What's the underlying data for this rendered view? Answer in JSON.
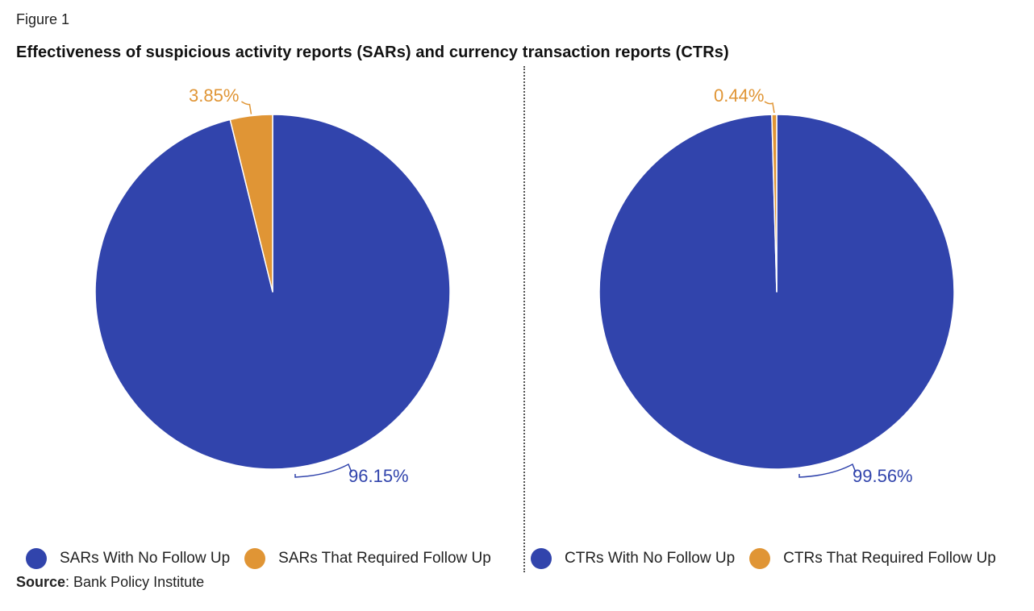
{
  "figure_label": "Figure 1",
  "title": "Effectiveness of suspicious activity reports (SARs) and currency transaction reports (CTRs)",
  "source": {
    "label": "Source",
    "text": ": Bank Policy Institute"
  },
  "colors": {
    "primary": "#3144AC",
    "accent": "#E09535",
    "divider": "#555555"
  },
  "chart_data": [
    {
      "type": "pie",
      "name": "SARs",
      "slices": [
        {
          "label": "SARs With No Follow Up",
          "value": 96.15,
          "display": "96.15%",
          "color": "#3144AC"
        },
        {
          "label": "SARs That Required Follow Up",
          "value": 3.85,
          "display": "3.85%",
          "color": "#E09535"
        }
      ]
    },
    {
      "type": "pie",
      "name": "CTRs",
      "slices": [
        {
          "label": "CTRs With No Follow Up",
          "value": 99.56,
          "display": "99.56%",
          "color": "#3144AC"
        },
        {
          "label": "CTRs That Required Follow Up",
          "value": 0.44,
          "display": "0.44%",
          "color": "#E09535"
        }
      ]
    }
  ]
}
